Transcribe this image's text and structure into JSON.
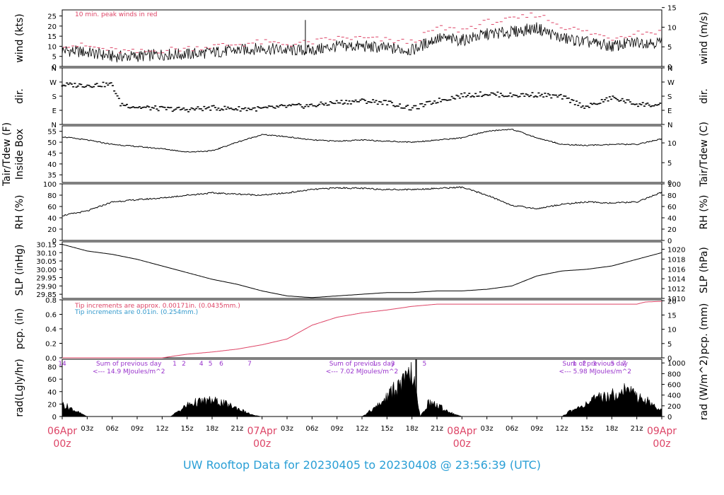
{
  "footer": {
    "title": "UW Rooftop Data for 20230405  to  20230408 @ 23:56:39  (UTC)"
  },
  "colors": {
    "red": "#dd4466",
    "blue": "#3399cc",
    "purple": "#9933cc",
    "black": "#000000"
  },
  "time_axis": {
    "hours": [
      "03z",
      "06z",
      "09z",
      "12z",
      "15z",
      "18z",
      "21z",
      "03z",
      "06z",
      "09z",
      "12z",
      "15z",
      "18z",
      "21z",
      "03z",
      "06z",
      "09z",
      "12z",
      "15z",
      "18z",
      "21z"
    ],
    "days": [
      {
        "date": "06Apr",
        "hour": "00z"
      },
      {
        "date": "07Apr",
        "hour": "00z"
      },
      {
        "date": "08Apr",
        "hour": "00z"
      },
      {
        "date": "09Apr",
        "hour": "00z"
      }
    ]
  },
  "chart_data": [
    {
      "type": "line",
      "id": "wind",
      "ylabel": "wind (kts)",
      "ylabel_right": "wind (m/s)",
      "yticks": [
        0,
        5,
        10,
        15,
        20,
        25
      ],
      "yticks_right": [
        0,
        5,
        10,
        15
      ],
      "ylim": [
        0,
        28
      ],
      "ylim_right": [
        0,
        14.4
      ],
      "note": "10 min. peak winds in red",
      "series": [
        {
          "name": "wind",
          "hours": [
            0,
            3,
            6,
            9,
            12,
            15,
            18,
            21,
            24,
            27,
            30,
            33,
            36,
            39,
            42,
            45,
            48,
            51,
            54,
            57,
            60,
            63,
            66,
            69,
            72
          ],
          "values": [
            8,
            7,
            5,
            5,
            6,
            6,
            7,
            8,
            9,
            8,
            8,
            10,
            10,
            9,
            8,
            14,
            13,
            16,
            17,
            19,
            14,
            12,
            10,
            12,
            12
          ]
        },
        {
          "name": "peak",
          "hours": [
            0,
            3,
            6,
            9,
            12,
            15,
            18,
            21,
            24,
            27,
            30,
            33,
            36,
            39,
            42,
            45,
            48,
            51,
            54,
            57,
            60,
            63,
            66,
            69,
            72
          ],
          "values": [
            11,
            10,
            8,
            7,
            8,
            9,
            10,
            11,
            12,
            11,
            12,
            14,
            14,
            13,
            12,
            19,
            18,
            22,
            23,
            26,
            20,
            17,
            14,
            17,
            17
          ]
        }
      ]
    },
    {
      "type": "scatter",
      "id": "dir",
      "ylabel": "dir.",
      "ylabel_right": "dir.",
      "yticks": [
        "N",
        "E",
        "S",
        "W",
        "N"
      ],
      "yticks_right": [
        "N",
        "E",
        "S",
        "W",
        "N"
      ],
      "ylim": [
        0,
        360
      ],
      "series": [
        {
          "name": "direction",
          "hours": [
            0,
            3,
            6,
            7,
            9,
            12,
            15,
            18,
            21,
            24,
            27,
            30,
            33,
            36,
            39,
            42,
            45,
            48,
            51,
            54,
            57,
            60,
            63,
            66,
            69,
            72
          ],
          "values": [
            252,
            250,
            255,
            130,
            110,
            100,
            95,
            105,
            100,
            100,
            115,
            120,
            140,
            150,
            140,
            100,
            150,
            185,
            195,
            185,
            190,
            175,
            110,
            170,
            130,
            120
          ]
        }
      ]
    },
    {
      "type": "line",
      "id": "temp",
      "ylabel": "Tair/Tdew (F)",
      "ylabel2": "Inside Box",
      "ylabel_right": "Tair/Tdew (C)",
      "yticks": [
        35,
        40,
        45,
        50,
        55
      ],
      "yticks_right": [
        0,
        5,
        10
      ],
      "ylim": [
        31.5,
        57.5
      ],
      "ylim_right": [
        0,
        14.3
      ],
      "series": [
        {
          "name": "tair",
          "hours": [
            0,
            3,
            6,
            9,
            12,
            15,
            18,
            21,
            24,
            27,
            30,
            33,
            36,
            39,
            42,
            45,
            48,
            51,
            54,
            57,
            60,
            63,
            66,
            69,
            72
          ],
          "values": [
            52.5,
            51,
            49,
            48,
            47,
            45.5,
            46,
            50,
            53.5,
            52.5,
            51,
            50.5,
            51,
            50.5,
            50,
            51,
            52,
            55,
            56,
            52,
            49,
            48.5,
            49,
            49,
            51.5
          ]
        }
      ]
    },
    {
      "type": "line",
      "id": "rh",
      "ylabel": "RH (%)",
      "ylabel_right": "RH (%)",
      "yticks": [
        0,
        20,
        40,
        60,
        80,
        100
      ],
      "yticks_right": [
        0,
        20,
        40,
        60,
        80,
        100
      ],
      "ylim": [
        0,
        100
      ],
      "series": [
        {
          "name": "rh",
          "hours": [
            0,
            3,
            6,
            9,
            12,
            15,
            18,
            21,
            24,
            27,
            30,
            33,
            36,
            39,
            42,
            45,
            48,
            51,
            54,
            57,
            60,
            63,
            66,
            69,
            72
          ],
          "values": [
            44,
            52,
            68,
            72,
            75,
            80,
            84,
            82,
            80,
            84,
            90,
            93,
            92,
            90,
            90,
            92,
            94,
            80,
            62,
            56,
            64,
            68,
            66,
            68,
            85
          ]
        }
      ]
    },
    {
      "type": "line",
      "id": "slp",
      "ylabel": "SLP (inHg)",
      "ylabel_right": "SLP (hPa)",
      "yticks": [
        29.85,
        29.9,
        29.95,
        30.0,
        30.05,
        30.1,
        30.15
      ],
      "yticks_right": [
        1010,
        1012,
        1014,
        1016,
        1018,
        1020
      ],
      "ylim": [
        29.825,
        30.165
      ],
      "ylim_right": [
        1010,
        1021.5
      ],
      "series": [
        {
          "name": "slp",
          "hours": [
            0,
            3,
            6,
            9,
            12,
            15,
            18,
            21,
            24,
            27,
            30,
            33,
            36,
            39,
            42,
            45,
            48,
            51,
            54,
            57,
            60,
            63,
            66,
            69,
            72
          ],
          "values": [
            30.15,
            30.11,
            30.09,
            30.06,
            30.02,
            29.98,
            29.94,
            29.91,
            29.87,
            29.84,
            29.83,
            29.84,
            29.85,
            29.86,
            29.86,
            29.87,
            29.87,
            29.88,
            29.9,
            29.96,
            29.99,
            30.0,
            30.02,
            30.06,
            30.1
          ]
        }
      ]
    },
    {
      "type": "line",
      "id": "pcp",
      "ylabel": "pcp. (in)",
      "ylabel_right": "pcp. (mm)",
      "yticks": [
        0.0,
        0.2,
        0.4,
        0.6,
        0.8
      ],
      "yticks_right": [
        0,
        5,
        10,
        15,
        20
      ],
      "ylim": [
        0,
        0.8
      ],
      "ylim_right": [
        0,
        20.32
      ],
      "notes": [
        "Tip increments are approx. 0.00171in. (0.0435mm.)",
        "Tip increments are 0.01in. (0.254mm.)"
      ],
      "series": [
        {
          "name": "pcp",
          "hours": [
            0,
            9,
            12,
            15,
            18,
            21,
            24,
            27,
            30,
            33,
            36,
            39,
            42,
            45,
            48,
            51,
            54,
            57,
            60,
            63,
            66,
            69,
            70,
            72
          ],
          "values": [
            0,
            0,
            0,
            0.05,
            0.08,
            0.12,
            0.18,
            0.26,
            0.45,
            0.56,
            0.62,
            0.66,
            0.71,
            0.74,
            0.74,
            0.74,
            0.74,
            0.74,
            0.74,
            0.74,
            0.74,
            0.74,
            0.77,
            0.78
          ]
        }
      ]
    },
    {
      "type": "area",
      "id": "rad",
      "ylabel": "rad(Lgly/hr)",
      "ylabel_right": "rad (W/m^2)",
      "yticks": [
        0,
        20,
        40,
        60,
        80
      ],
      "yticks_right": [
        0,
        200,
        400,
        600,
        800,
        1000
      ],
      "ylim": [
        0,
        92
      ],
      "ylim_right": [
        0,
        1069
      ],
      "day_summaries": [
        {
          "title": "Sum of previous day",
          "value": "<--- 14.9 MJoules/m^2"
        },
        {
          "title": "Sum of previous day",
          "value": "<--- 7.02 MJoules/m^2"
        },
        {
          "title": "Sum of previous day",
          "value": "<--- 5.98 MJoules/m^2"
        }
      ],
      "hour_markers": [
        {
          "label": "14",
          "hour": 0
        },
        {
          "label": "1",
          "hour": 13.5
        },
        {
          "label": "2",
          "hour": 14.6
        },
        {
          "label": "4",
          "hour": 16.7
        },
        {
          "label": "5",
          "hour": 17.8
        },
        {
          "label": "6",
          "hour": 19.1
        },
        {
          "label": "7",
          "hour": 22.5
        },
        {
          "label": "1",
          "hour": 37.5
        },
        {
          "label": "3",
          "hour": 39.7
        },
        {
          "label": "5",
          "hour": 43.5
        },
        {
          "label": "1",
          "hour": 61.5
        },
        {
          "label": "2",
          "hour": 62.7
        },
        {
          "label": "3",
          "hour": 63.9
        },
        {
          "label": "5",
          "hour": 66.1
        },
        {
          "label": "7",
          "hour": 67.5
        }
      ],
      "series": [
        {
          "name": "radiation",
          "hours": [
            0,
            1,
            2,
            3,
            13,
            14,
            15,
            16,
            17,
            18,
            19,
            20,
            21,
            22,
            23,
            24,
            36,
            37,
            38,
            39,
            40,
            41,
            42,
            43,
            44,
            45,
            46,
            47,
            48,
            60,
            61,
            62,
            63,
            64,
            65,
            66,
            67,
            68,
            69,
            70,
            71,
            72
          ],
          "values": [
            22,
            15,
            7,
            0,
            0,
            10,
            20,
            25,
            27,
            28,
            25,
            20,
            15,
            8,
            2,
            0,
            0,
            10,
            20,
            35,
            50,
            60,
            80,
            0,
            25,
            20,
            12,
            5,
            0,
            0,
            10,
            15,
            25,
            30,
            35,
            38,
            45,
            50,
            35,
            30,
            20,
            10
          ]
        }
      ]
    }
  ]
}
